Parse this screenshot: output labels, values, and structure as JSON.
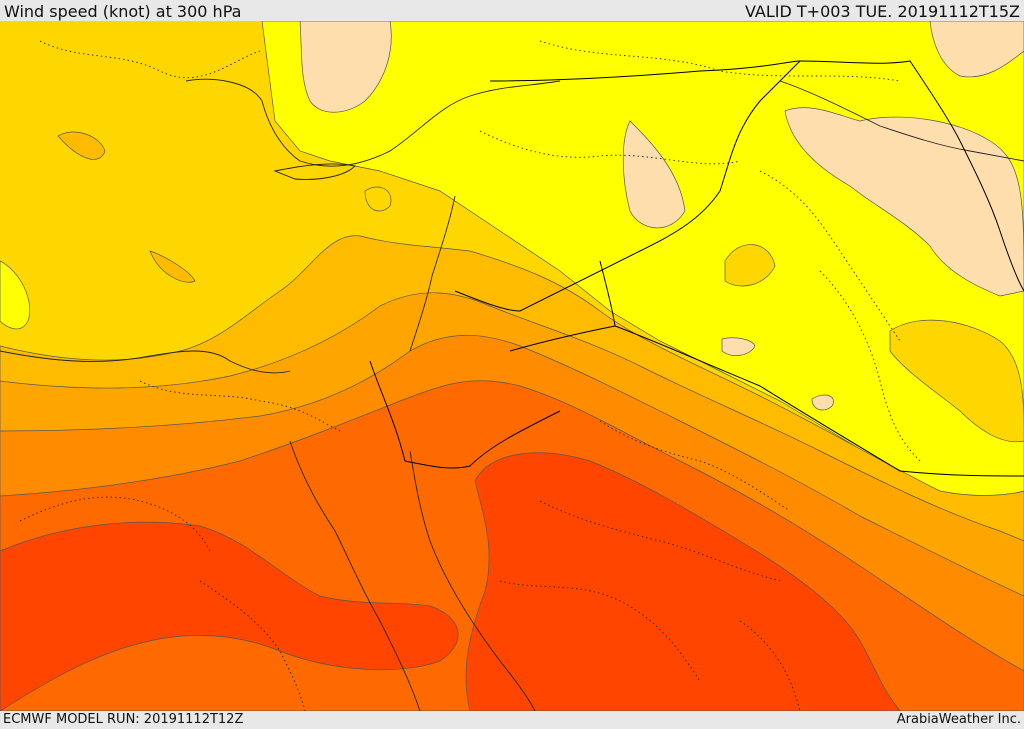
{
  "header": {
    "title": "Wind speed (knot) at 300 hPa",
    "valid": "VALID T+003 TUE. 20191112T15Z"
  },
  "footer": {
    "model_run": "ECMWF MODEL RUN: 20191112T12Z",
    "credit": "ArabiaWeather Inc."
  },
  "map": {
    "field": "wind speed",
    "level": "300 hPa",
    "colors": {
      "band_lightest": "#ffdead",
      "band_yellow": "#ffff00",
      "band_gold": "#ffd700",
      "band_amber": "#ffbb00",
      "band_orange_light": "#ffa500",
      "band_orange": "#ff8c00",
      "band_orange_dark": "#ff6a00",
      "band_red": "#ff4500",
      "contour_line": "#555555",
      "border_line": "#000000"
    }
  }
}
